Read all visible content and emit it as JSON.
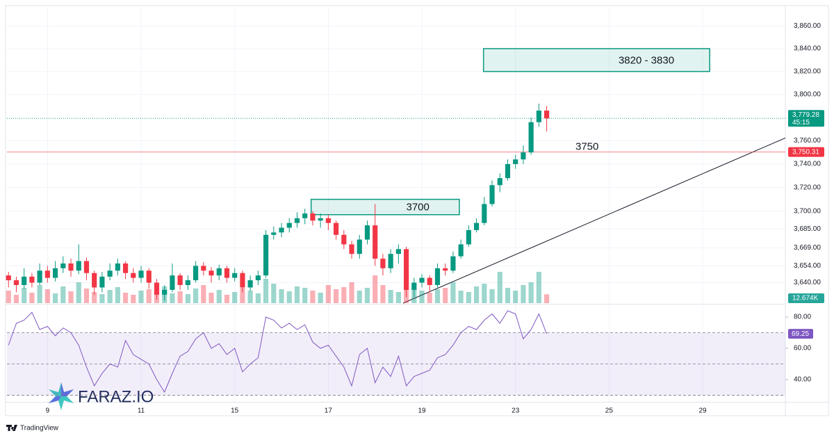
{
  "chart_data": [
    {
      "type": "candlestick",
      "open": [
        3646,
        3642,
        3638,
        3645,
        3640,
        3650,
        3644,
        3652,
        3656,
        3650,
        3658,
        3648,
        3636,
        3645,
        3650,
        3656,
        3648,
        3644,
        3650,
        3640,
        3630,
        3634,
        3646,
        3638,
        3642,
        3654,
        3650,
        3646,
        3652,
        3644,
        3648,
        3636,
        3642,
        3646,
        3680,
        3682,
        3686,
        3690,
        3694,
        3698,
        3692,
        3694,
        3690,
        3680,
        3672,
        3664,
        3676,
        3688,
        3660,
        3652,
        3664,
        3668,
        3634,
        3640,
        3644,
        3638,
        3652,
        3650,
        3662,
        3672,
        3684,
        3690,
        3706,
        3722,
        3728,
        3740,
        3744,
        3750,
        3776,
        3786
      ],
      "high": [
        3649,
        3645,
        3652,
        3648,
        3656,
        3654,
        3658,
        3662,
        3660,
        3672,
        3661,
        3650,
        3649,
        3656,
        3660,
        3658,
        3652,
        3654,
        3652,
        3643,
        3638,
        3656,
        3648,
        3646,
        3658,
        3657,
        3653,
        3655,
        3654,
        3652,
        3650,
        3646,
        3650,
        3684,
        3687,
        3690,
        3694,
        3699,
        3702,
        3700,
        3698,
        3697,
        3692,
        3684,
        3675,
        3680,
        3692,
        3706,
        3664,
        3668,
        3672,
        3670,
        3644,
        3647,
        3646,
        3656,
        3656,
        3666,
        3676,
        3688,
        3694,
        3712,
        3726,
        3732,
        3744,
        3748,
        3756,
        3780,
        3792,
        3790
      ],
      "low": [
        3636,
        3632,
        3635,
        3636,
        3638,
        3640,
        3641,
        3648,
        3645,
        3647,
        3642,
        3630,
        3632,
        3642,
        3646,
        3643,
        3640,
        3640,
        3635,
        3626,
        3625,
        3632,
        3634,
        3634,
        3640,
        3646,
        3640,
        3642,
        3640,
        3641,
        3632,
        3633,
        3638,
        3644,
        3676,
        3678,
        3682,
        3686,
        3689,
        3688,
        3686,
        3684,
        3676,
        3668,
        3660,
        3660,
        3672,
        3654,
        3646,
        3648,
        3656,
        3628,
        3628,
        3636,
        3632,
        3636,
        3646,
        3648,
        3660,
        3670,
        3682,
        3688,
        3704,
        3716,
        3726,
        3736,
        3740,
        3748,
        3772,
        3768
      ],
      "close": [
        3642,
        3638,
        3645,
        3640,
        3650,
        3644,
        3652,
        3656,
        3650,
        3658,
        3648,
        3636,
        3645,
        3650,
        3656,
        3648,
        3644,
        3650,
        3640,
        3630,
        3634,
        3646,
        3638,
        3642,
        3654,
        3650,
        3646,
        3652,
        3644,
        3648,
        3636,
        3642,
        3646,
        3680,
        3682,
        3686,
        3690,
        3694,
        3698,
        3692,
        3694,
        3690,
        3680,
        3672,
        3664,
        3676,
        3688,
        3660,
        3652,
        3664,
        3668,
        3634,
        3640,
        3644,
        3638,
        3652,
        3650,
        3662,
        3672,
        3684,
        3690,
        3706,
        3722,
        3728,
        3740,
        3744,
        3750,
        3776,
        3786,
        3779.28
      ],
      "up_color": "#089981",
      "down_color": "#f23645",
      "log_scale": true,
      "grid": true,
      "ylim": [
        3623,
        3878
      ],
      "yticks": [
        {
          "value": 3860,
          "label": "3,860.00"
        },
        {
          "value": 3840,
          "label": "3,840.00"
        },
        {
          "value": 3820,
          "label": "3,820.00"
        },
        {
          "value": 3800,
          "label": "3,800.00"
        },
        {
          "value": 3760,
          "label": "3,760.00"
        },
        {
          "value": 3740,
          "label": "3,740.00"
        },
        {
          "value": 3720,
          "label": "3,720.00"
        },
        {
          "value": 3700,
          "label": "3,700.00"
        },
        {
          "value": 3685,
          "label": "3,685.00"
        },
        {
          "value": 3669,
          "label": "3,669.00"
        },
        {
          "value": 3654,
          "label": "3,654.00"
        },
        {
          "value": 3640,
          "label": "3,640.00"
        }
      ],
      "xlim": [
        -0.2,
        99.6
      ],
      "xticks": [
        {
          "value": 5,
          "label": "9"
        },
        {
          "value": 17,
          "label": "11"
        },
        {
          "value": 29,
          "label": "15"
        },
        {
          "value": 41,
          "label": "17"
        },
        {
          "value": 53,
          "label": "19"
        },
        {
          "value": 65,
          "label": "23"
        },
        {
          "value": 77,
          "label": "25"
        },
        {
          "value": 89,
          "label": "29"
        }
      ],
      "last_close_label": "3,779.28",
      "countdown": "45:15",
      "price_line": {
        "value": 3750.31,
        "label": "3,750.31",
        "color": "#f23645"
      },
      "zones": [
        {
          "label": "3820 - 3830",
          "y": [
            3820,
            3840
          ],
          "x": [
            60.9,
            89.9
          ]
        },
        {
          "label": "3700",
          "y": [
            3697,
            3710
          ],
          "x": [
            38.8,
            57.8
          ]
        }
      ],
      "annotation": "3750",
      "trendline": {
        "x": [
          50.6,
          99.6
        ],
        "y": [
          3623,
          3762.4
        ]
      }
    },
    {
      "type": "volume",
      "values": [
        18000,
        12000,
        22000,
        15000,
        26000,
        20000,
        14000,
        24000,
        17000,
        30000,
        21000,
        16000,
        13000,
        19000,
        23000,
        15000,
        12000,
        18000,
        20000,
        16000,
        24000,
        14000,
        17000,
        13000,
        21000,
        26000,
        15000,
        19000,
        12000,
        16000,
        22000,
        18000,
        14000,
        35000,
        28000,
        20000,
        17000,
        24000,
        22000,
        18000,
        15000,
        26000,
        20000,
        23000,
        30000,
        18000,
        22000,
        40000,
        26000,
        19000,
        16000,
        42000,
        24000,
        18000,
        15000,
        20000,
        22000,
        30000,
        18000,
        16000,
        24000,
        28000,
        20000,
        45000,
        22000,
        18000,
        26000,
        30000,
        45000,
        12674
      ],
      "ylim": [
        0,
        100000
      ],
      "last_label": "12.674K"
    },
    {
      "type": "line",
      "values": [
        62,
        76,
        78,
        83,
        72,
        74,
        68,
        73,
        70,
        62,
        48,
        36,
        44,
        50,
        48,
        65,
        56,
        53,
        50,
        40,
        32,
        44,
        55,
        58,
        66,
        70,
        60,
        63,
        56,
        60,
        45,
        50,
        54,
        80,
        78,
        73,
        76,
        72,
        75,
        64,
        60,
        62,
        55,
        48,
        36,
        56,
        60,
        38,
        48,
        42,
        55,
        36,
        42,
        44,
        46,
        54,
        56,
        62,
        70,
        74,
        72,
        78,
        82,
        76,
        84,
        82,
        66,
        72,
        82,
        69.25
      ],
      "color": "#7e57c2",
      "ylim": [
        25.8,
        87.1
      ],
      "yticks": [
        {
          "value": 80,
          "label": "80.00"
        },
        {
          "value": 60,
          "label": "60.00"
        },
        {
          "value": 40,
          "label": "40.00"
        }
      ],
      "bands": [
        70,
        50,
        30
      ],
      "last_label": "69.25"
    }
  ],
  "watermark": "FARAZ.IO",
  "footer": "TradingView"
}
